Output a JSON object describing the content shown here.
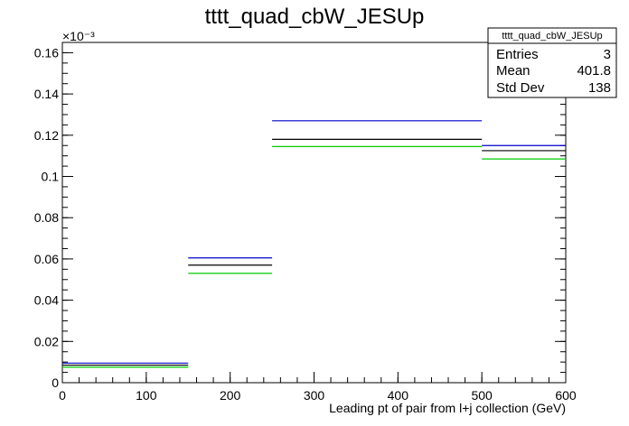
{
  "chart_data": {
    "type": "histogram",
    "title": "tttt_quad_cbW_JESUp",
    "xlabel": "Leading pt of pair from l+j collection (GeV)",
    "ylabel": "",
    "y_exponent_label": "×10⁻³",
    "xlim": [
      0,
      600
    ],
    "ylim": [
      0,
      0.165
    ],
    "x_ticks": [
      0,
      100,
      200,
      300,
      400,
      500,
      600
    ],
    "y_ticks": [
      0,
      0.02,
      0.04,
      0.06,
      0.08,
      0.1,
      0.12,
      0.14,
      0.16
    ],
    "bin_edges": [
      0,
      150,
      250,
      500,
      600
    ],
    "series": [
      {
        "color": "#0000cc",
        "values": [
          0.0095,
          0.0605,
          0.127,
          0.115
        ]
      },
      {
        "color": "#000000",
        "values": [
          0.0085,
          0.057,
          0.118,
          0.1125
        ]
      },
      {
        "color": "#00cc00",
        "values": [
          0.0075,
          0.053,
          0.1145,
          0.1085
        ]
      }
    ],
    "grid": false,
    "legend": "none",
    "stats_box": {
      "title": "tttt_quad_cbW_JESUp",
      "rows": [
        {
          "label": "Entries",
          "value": "3"
        },
        {
          "label": "Mean",
          "value": "401.8"
        },
        {
          "label": "Std Dev",
          "value": "138"
        }
      ],
      "position": "top-right"
    }
  }
}
